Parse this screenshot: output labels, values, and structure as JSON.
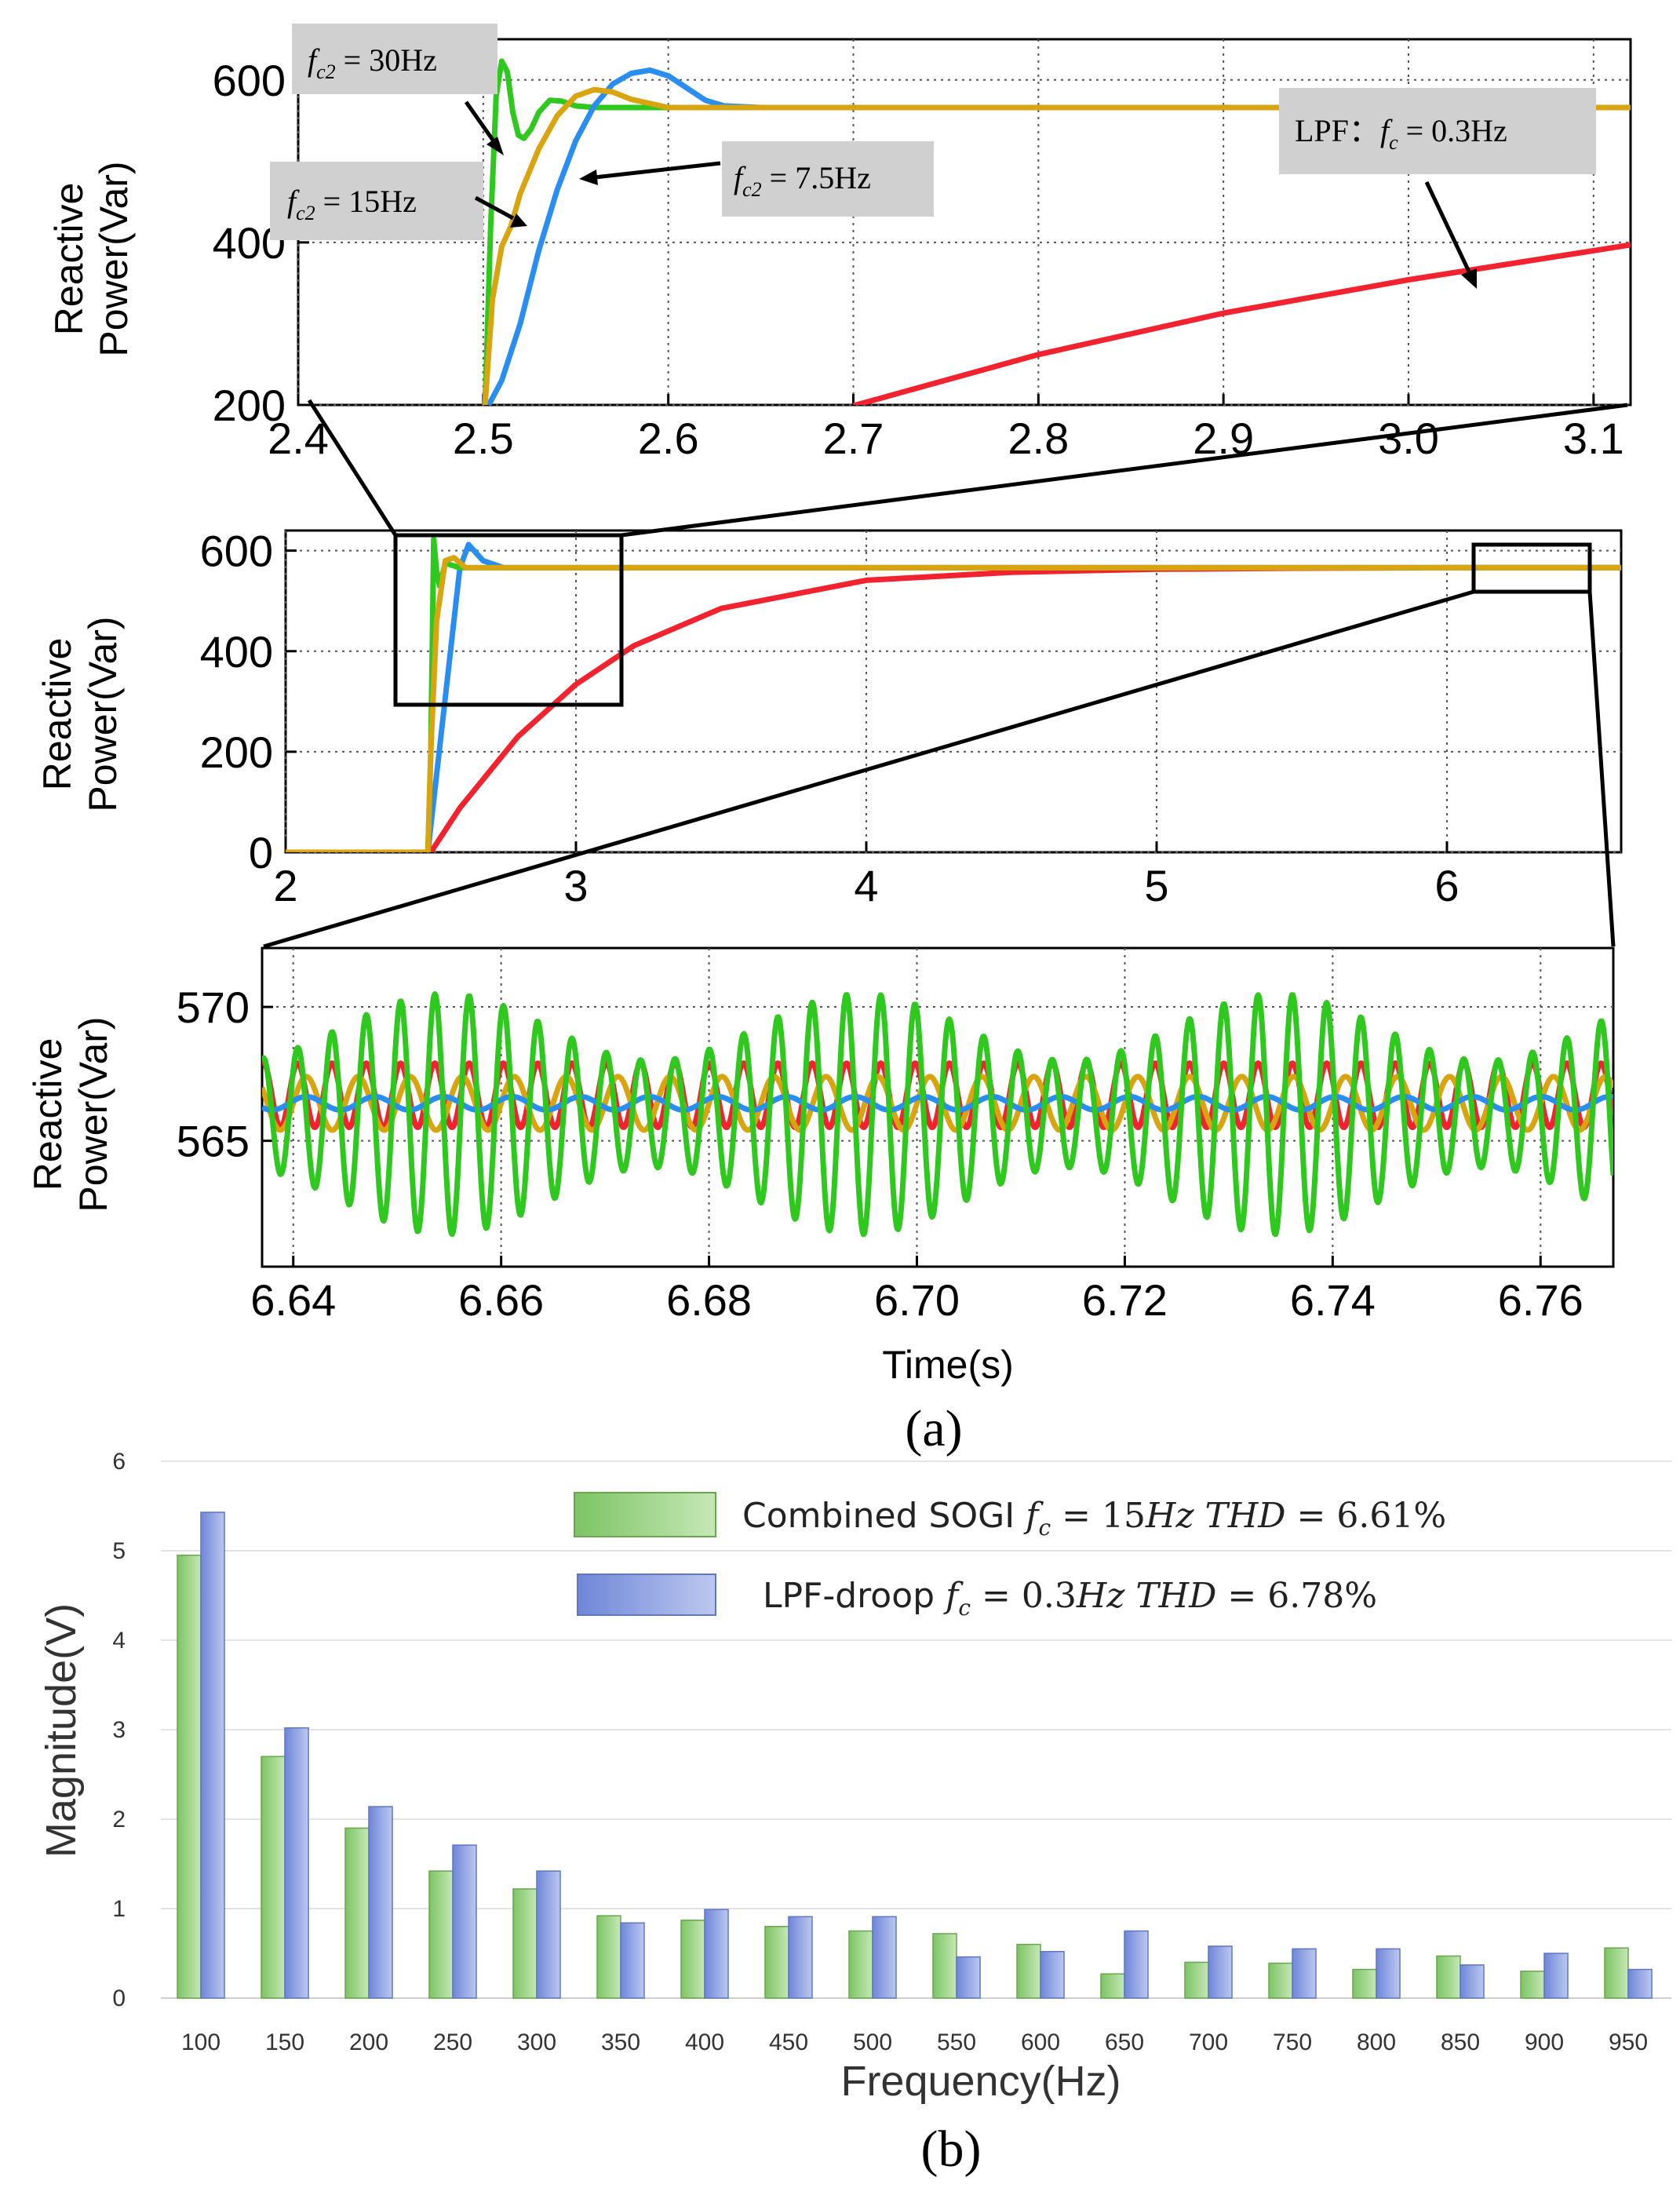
{
  "figure": {
    "panel_a_label": "(a)",
    "panel_b_label": "(b)",
    "colors": {
      "green": "#2ec81e",
      "blue": "#2a8ef0",
      "orange": "#d8a410",
      "red": "#f2232e",
      "bar_green": "#9fd58b",
      "bar_blue": "#8fa3e2"
    }
  },
  "chart_data": [
    {
      "type": "line",
      "panel": "a-top",
      "ylabel": "Reactive Power(Var)",
      "xlabel": "",
      "xlim": [
        2.4,
        3.12
      ],
      "ylim": [
        200,
        650
      ],
      "xticks": [
        "2.4",
        "2.5",
        "2.6",
        "2.7",
        "2.8",
        "2.9",
        "3.0",
        "3.1"
      ],
      "xtick_values": [
        2.4,
        2.5,
        2.6,
        2.7,
        2.8,
        2.9,
        3.0,
        3.1
      ],
      "yticks": [
        "200",
        "400",
        "600"
      ],
      "ytick_values": [
        200,
        400,
        600
      ],
      "annotations": {
        "fc30": {
          "prefix": "f",
          "sub": "c2",
          "rest": " = 30Hz"
        },
        "fc15": {
          "prefix": "f",
          "sub": "c2",
          "rest": " = 15Hz"
        },
        "fc75": {
          "prefix": "f",
          "sub": "c2",
          "rest": " = 7.5Hz"
        },
        "lpf": {
          "lead": "LPF：",
          "prefix": "f",
          "sub": "c",
          "rest": " = 0.3Hz"
        }
      },
      "series": [
        {
          "name": "green",
          "x": [
            2.501,
            2.504,
            2.507,
            2.51,
            2.513,
            2.516,
            2.519,
            2.522,
            2.526,
            2.53,
            2.536,
            2.542,
            2.55,
            2.56,
            2.58,
            2.6,
            3.12
          ],
          "y": [
            200,
            420,
            580,
            623,
            610,
            560,
            532,
            528,
            540,
            560,
            575,
            574,
            568,
            566,
            566,
            566,
            566
          ]
        },
        {
          "name": "blue",
          "x": [
            2.503,
            2.51,
            2.52,
            2.53,
            2.54,
            2.55,
            2.56,
            2.57,
            2.58,
            2.59,
            2.6,
            2.61,
            2.62,
            2.63,
            2.65,
            2.7,
            3.12
          ],
          "y": [
            200,
            230,
            300,
            390,
            465,
            525,
            568,
            595,
            608,
            612,
            605,
            590,
            575,
            568,
            566,
            566,
            566
          ]
        },
        {
          "name": "orange",
          "x": [
            2.501,
            2.505,
            2.51,
            2.515,
            2.52,
            2.53,
            2.54,
            2.55,
            2.56,
            2.57,
            2.58,
            2.6,
            2.62,
            3.12
          ],
          "y": [
            200,
            330,
            395,
            420,
            460,
            515,
            556,
            580,
            588,
            585,
            576,
            566,
            566,
            566
          ]
        },
        {
          "name": "red",
          "x": [
            2.7,
            2.8,
            2.9,
            3.0,
            3.12
          ],
          "y": [
            199,
            262,
            313,
            354,
            397
          ]
        }
      ]
    },
    {
      "type": "line",
      "panel": "a-middle",
      "ylabel": "Reactive Power(Var)",
      "xlabel": "",
      "xlim": [
        2,
        6.6
      ],
      "ylim": [
        0,
        640
      ],
      "xticks": [
        "2",
        "3",
        "4",
        "5",
        "6"
      ],
      "xtick_values": [
        2,
        3,
        4,
        5,
        6
      ],
      "yticks": [
        "0",
        "200",
        "400",
        "600"
      ],
      "ytick_values": [
        0,
        200,
        400,
        600
      ],
      "series": [
        {
          "name": "red",
          "x": [
            2.0,
            2.5,
            2.6,
            2.8,
            3.0,
            3.2,
            3.5,
            4.0,
            4.5,
            5.0,
            5.5,
            6.0,
            6.6
          ],
          "y": [
            0,
            0,
            88,
            230,
            334,
            411,
            485,
            541,
            557,
            563,
            565,
            566,
            566
          ]
        },
        {
          "name": "blue",
          "x": [
            2.0,
            2.49,
            2.6,
            2.63,
            2.68,
            2.75,
            6.6
          ],
          "y": [
            0,
            0,
            565,
            612,
            580,
            566,
            566
          ]
        },
        {
          "name": "green",
          "x": [
            2.0,
            2.49,
            2.5,
            2.51,
            2.52,
            2.53,
            2.55,
            2.6,
            6.6
          ],
          "y": [
            0,
            0,
            200,
            623,
            560,
            530,
            575,
            566,
            566
          ]
        },
        {
          "name": "orange",
          "x": [
            2.0,
            2.49,
            2.5,
            2.52,
            2.55,
            2.58,
            2.62,
            6.6
          ],
          "y": [
            0,
            0,
            200,
            460,
            580,
            586,
            566,
            566
          ]
        }
      ]
    },
    {
      "type": "line",
      "panel": "a-bottom",
      "ylabel": "Reactive Power(Var)",
      "xlabel": "Time(s)",
      "xlim": [
        6.637,
        6.767
      ],
      "ylim": [
        560.3,
        572.2
      ],
      "xticks": [
        "6.64",
        "6.66",
        "6.68",
        "6.70",
        "6.72",
        "6.74",
        "6.76"
      ],
      "xtick_values": [
        6.64,
        6.66,
        6.68,
        6.7,
        6.72,
        6.74,
        6.76
      ],
      "yticks": [
        "565",
        "570"
      ],
      "ytick_values": [
        565,
        570
      ],
      "series": [
        {
          "name": "red",
          "mean": 566.7,
          "amplitude": 1.2,
          "period_s": 0.0033
        },
        {
          "name": "orange",
          "mean": 566.4,
          "amplitude": 1.0,
          "period_s": 0.005
        },
        {
          "name": "blue",
          "mean": 566.4,
          "amplitude": 0.25,
          "period_s": 0.0066
        },
        {
          "name": "green",
          "mean": 566.0,
          "amplitude_min": 2.0,
          "amplitude_max": 4.5,
          "period_s": 0.0033
        }
      ]
    },
    {
      "type": "bar",
      "panel": "b",
      "title": "",
      "xlabel": "Frequency(Hz)",
      "ylabel": "Magnitude(V)",
      "ylim": [
        0,
        6
      ],
      "yticks": [
        "0",
        "1",
        "2",
        "3",
        "4",
        "5",
        "6"
      ],
      "categories": [
        "100",
        "150",
        "200",
        "250",
        "300",
        "350",
        "400",
        "450",
        "500",
        "550",
        "600",
        "650",
        "700",
        "750",
        "800",
        "850",
        "900",
        "950"
      ],
      "legend_position": "top-right",
      "series": [
        {
          "name": "Combined SOGI",
          "legend": {
            "prefix": "Combined SOGI ",
            "var": "f",
            "sub": "c",
            "rest": " = 15",
            "unit": "Hz",
            "thd": "THD",
            "val": " = 6.61%"
          },
          "values": [
            4.95,
            2.7,
            1.9,
            1.42,
            1.22,
            0.92,
            0.87,
            0.8,
            0.75,
            0.72,
            0.6,
            0.27,
            0.4,
            0.39,
            0.32,
            0.47,
            0.3,
            0.56
          ]
        },
        {
          "name": "LPF-droop",
          "legend": {
            "prefix": "LPF-droop ",
            "var": "f",
            "sub": "c",
            "rest": " = 0.3",
            "unit": "Hz",
            "thd": "THD",
            "val": " = 6.78%"
          },
          "values": [
            5.43,
            3.02,
            2.14,
            1.71,
            1.42,
            0.84,
            0.99,
            0.91,
            0.91,
            0.46,
            0.52,
            0.75,
            0.58,
            0.55,
            0.55,
            0.37,
            0.5,
            0.32
          ]
        }
      ]
    }
  ]
}
